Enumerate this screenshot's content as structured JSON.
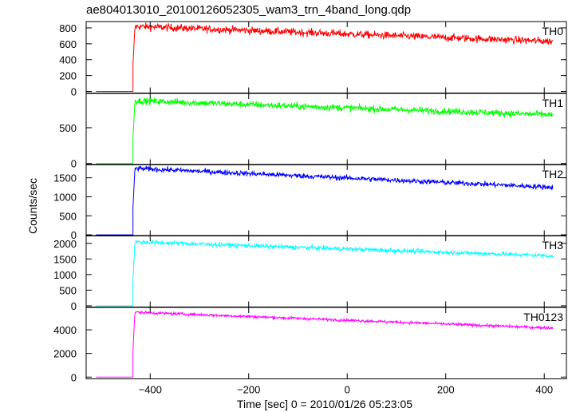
{
  "title": "ae804013010_20100126052305_wam3_trn_4band_long.qdp",
  "chart_data": {
    "type": "line",
    "title": "ae804013010_20100126052305_wam3_trn_4band_long.qdp",
    "xlabel": "Time [sec] 0 = 2010/01/26 05:23:05",
    "ylabel": "Counts/sec",
    "xlim": [
      -530,
      445
    ],
    "xticks": [
      -400,
      -200,
      0,
      200,
      400
    ],
    "x_tick_labels": [
      "−400",
      "−200",
      "0",
      "200",
      "400"
    ],
    "onset_time": -435,
    "data_start": -510,
    "data_end": 418,
    "grid": false,
    "legend": "none",
    "panels": [
      {
        "name": "TH0",
        "color": "#ff0000",
        "ylim": [
          -20,
          880
        ],
        "yticks": [
          0,
          200,
          400,
          600,
          800
        ],
        "pre_level": 0,
        "post_start": 820,
        "post_end": 630,
        "noise": 45
      },
      {
        "name": "TH1",
        "color": "#00ff00",
        "ylim": [
          -20,
          980
        ],
        "yticks": [
          0,
          500
        ],
        "pre_level": 0,
        "post_start": 880,
        "post_end": 680,
        "noise": 45
      },
      {
        "name": "TH2",
        "color": "#0000ff",
        "ylim": [
          -30,
          1850
        ],
        "yticks": [
          0,
          500,
          1000,
          1500
        ],
        "pre_level": 0,
        "post_start": 1750,
        "post_end": 1250,
        "noise": 65
      },
      {
        "name": "TH3",
        "color": "#00ffff",
        "ylim": [
          -40,
          2250
        ],
        "yticks": [
          0,
          500,
          1000,
          1500,
          2000
        ],
        "pre_level": 0,
        "post_start": 2050,
        "post_end": 1600,
        "noise": 65
      },
      {
        "name": "TH0123",
        "color": "#ff00ff",
        "ylim": [
          -150,
          5900
        ],
        "yticks": [
          0,
          2000,
          4000
        ],
        "pre_level": 0,
        "post_start": 5500,
        "post_end": 4150,
        "noise": 110
      }
    ]
  }
}
